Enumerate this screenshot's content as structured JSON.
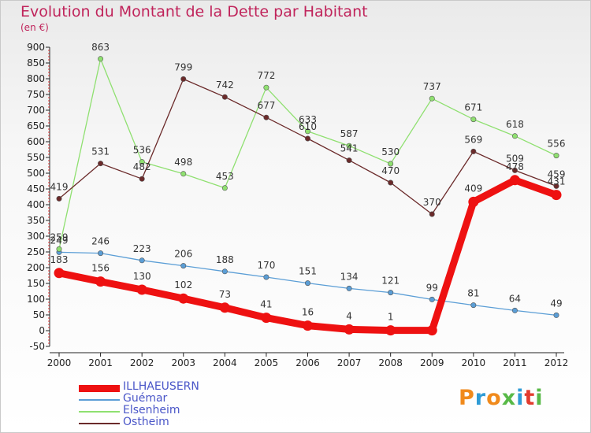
{
  "header": {
    "title": "Evolution du Montant de la Dette par Habitant",
    "subtitle": "(en €)"
  },
  "logo": {
    "text": "Proxiti",
    "colors": [
      "#f08a1c",
      "#2e9bd6",
      "#f08a1c",
      "#58b947",
      "#2e9bd6",
      "#e23b2e",
      "#58b947"
    ]
  },
  "chart_data": {
    "type": "line",
    "title": "Evolution du Montant de la Dette par Habitant",
    "subtitle": "(en €)",
    "x": [
      2000,
      2001,
      2002,
      2003,
      2004,
      2005,
      2006,
      2007,
      2008,
      2009,
      2010,
      2011,
      2012
    ],
    "ylim": [
      -50,
      900
    ],
    "yticks": [
      -50,
      0,
      50,
      100,
      150,
      200,
      250,
      300,
      350,
      400,
      450,
      500,
      550,
      600,
      650,
      700,
      750,
      800,
      850,
      900
    ],
    "grid": false,
    "legend": "bottom-left",
    "series": [
      {
        "name": "ILLHAEUSERN",
        "color": "#ee1111",
        "emphasis": true,
        "values": [
          183,
          156,
          130,
          102,
          73,
          41,
          16,
          4,
          1,
          1,
          409,
          478,
          431
        ],
        "labels": [
          "183",
          "156",
          "130",
          "102",
          "73",
          "41",
          "16",
          "4",
          "1",
          "",
          "409",
          "478",
          "431"
        ]
      },
      {
        "name": "Guémar",
        "color": "#5b9ed6",
        "values": [
          249,
          246,
          223,
          206,
          188,
          170,
          151,
          134,
          121,
          99,
          81,
          64,
          49
        ],
        "labels": [
          "249",
          "246",
          "223",
          "206",
          "188",
          "170",
          "151",
          "134",
          "121",
          "99",
          "81",
          "64",
          "49"
        ]
      },
      {
        "name": "Elsenheim",
        "color": "#8fe070",
        "values": [
          259,
          863,
          536,
          498,
          453,
          772,
          633,
          587,
          530,
          737,
          671,
          618,
          556
        ],
        "labels": [
          "259",
          "863",
          "536",
          "498",
          "453",
          "772",
          "633",
          "587",
          "530",
          "737",
          "671",
          "618",
          "556"
        ]
      },
      {
        "name": "Ostheim",
        "color": "#6b2a2a",
        "values": [
          419,
          531,
          482,
          799,
          742,
          677,
          610,
          541,
          470,
          370,
          569,
          509,
          459
        ],
        "labels": [
          "419",
          "531",
          "482",
          "799",
          "742",
          "677",
          "610",
          "541",
          "470",
          "370",
          "569",
          "509",
          "459"
        ]
      }
    ]
  }
}
